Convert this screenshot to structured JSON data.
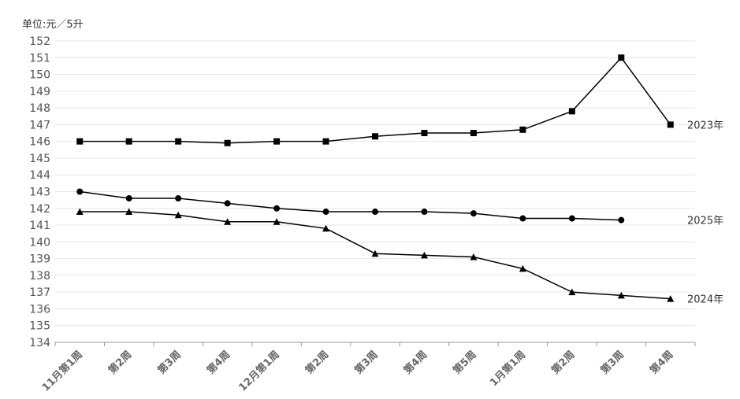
{
  "chart_data": {
    "type": "line",
    "unit_label": "单位:元／5升",
    "categories": [
      "11月第1周",
      "第2周",
      "第3周",
      "第4周",
      "12月第1周",
      "第2周",
      "第3周",
      "第4周",
      "第5周",
      "1月第1周",
      "第2周",
      "第3周",
      "第4周"
    ],
    "ylim": [
      134,
      152
    ],
    "yticks": [
      134,
      135,
      136,
      137,
      138,
      139,
      140,
      141,
      142,
      143,
      144,
      145,
      146,
      147,
      148,
      149,
      150,
      151,
      152
    ],
    "grid": true,
    "series": [
      {
        "name": "2023年",
        "marker": "square",
        "values": [
          146.0,
          146.0,
          146.0,
          145.9,
          146.0,
          146.0,
          146.3,
          146.5,
          146.5,
          146.7,
          147.8,
          151.0,
          147.0
        ]
      },
      {
        "name": "2025年",
        "marker": "circle",
        "values": [
          143.0,
          142.6,
          142.6,
          142.3,
          142.0,
          141.8,
          141.8,
          141.8,
          141.7,
          141.4,
          141.4,
          141.3,
          null
        ]
      },
      {
        "name": "2024年",
        "marker": "triangle",
        "values": [
          141.8,
          141.8,
          141.6,
          141.2,
          141.2,
          140.8,
          139.3,
          139.2,
          139.1,
          138.4,
          137.0,
          136.8,
          136.6
        ]
      }
    ],
    "colors": {
      "line": "#000000",
      "grid": "#e6e6e6",
      "axis": "#999999"
    }
  }
}
